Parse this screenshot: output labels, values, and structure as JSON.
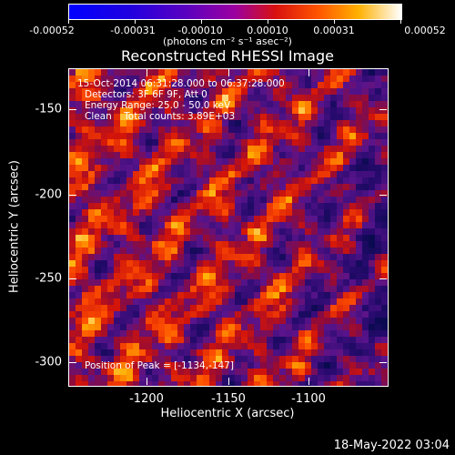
{
  "colorbar": {
    "tick_labels": [
      "-0.00052",
      "-0.00031",
      "-0.00010",
      "0.00010",
      "0.00031",
      "0.00052"
    ],
    "units_label": "(photons cm⁻² s⁻¹ asec⁻²)",
    "min": -0.00052,
    "max": 0.00052
  },
  "plot": {
    "title": "Reconstructed RHESSI Image",
    "annotations": {
      "time_range": "15-Oct-2014 06:31:28.000 to 06:37:28.000",
      "detectors": "Detectors: 3F 6F 9F, Att 0",
      "energy_range": "Energy Range: 25.0 - 50.0 keV",
      "clean_counts": "Clean    Total counts: 3.89E+03",
      "peak_position": "Position of Peak = [-1134,-147]"
    },
    "xlabel": "Heliocentric X (arcsec)",
    "ylabel": "Heliocentric Y (arcsec)",
    "x_ticks": [
      "-1200",
      "-1150",
      "-1100"
    ],
    "y_ticks": [
      "-150",
      "-200",
      "-250",
      "-300"
    ]
  },
  "footer": {
    "date_stamp": "18-May-2022 03:04"
  }
}
